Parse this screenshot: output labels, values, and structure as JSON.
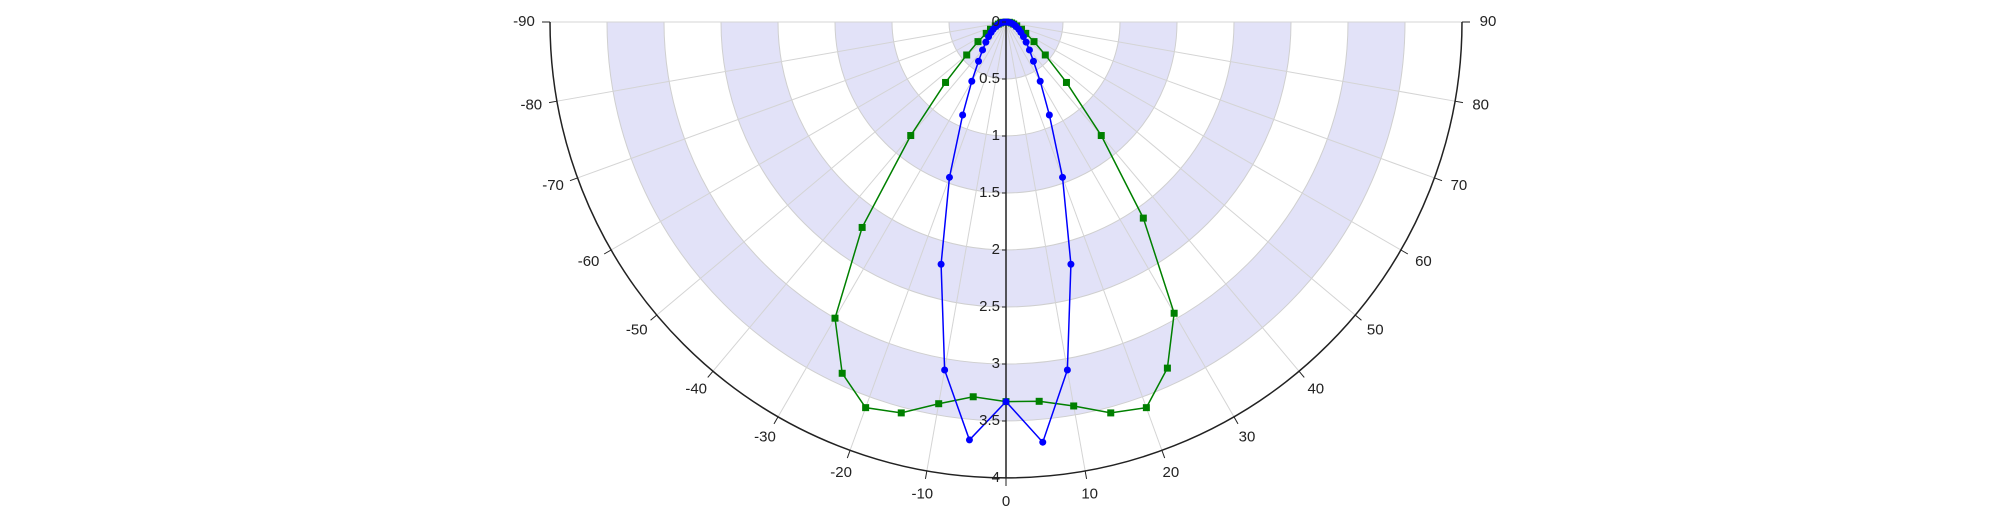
{
  "chart_data": {
    "type": "polar",
    "theta": [
      -90,
      -85,
      -80,
      -75,
      -70,
      -65,
      -60,
      -55,
      -50,
      -45,
      -40,
      -35,
      -30,
      -25,
      -20,
      -15,
      -10,
      -5,
      0,
      5,
      10,
      15,
      20,
      25,
      30,
      35,
      40,
      45,
      50,
      55,
      60,
      65,
      70,
      75,
      80,
      85,
      90
    ],
    "series": [
      {
        "color": "#008000",
        "marker": "square",
        "r": [
          0,
          0.03,
          0.05,
          0.07,
          0.1,
          0.15,
          0.2,
          0.3,
          0.45,
          0.75,
          1.3,
          2.2,
          3.0,
          3.4,
          3.6,
          3.55,
          3.4,
          3.3,
          3.33,
          3.34,
          3.42,
          3.55,
          3.6,
          3.35,
          2.95,
          2.1,
          1.3,
          0.75,
          0.45,
          0.3,
          0.2,
          0.15,
          0.1,
          0.07,
          0.05,
          0.03,
          0
        ]
      },
      {
        "color": "#0000ff",
        "marker": "circle",
        "r": [
          0,
          0.02,
          0.04,
          0.06,
          0.08,
          0.1,
          0.13,
          0.16,
          0.2,
          0.25,
          0.32,
          0.42,
          0.6,
          0.9,
          1.45,
          2.2,
          3.1,
          3.68,
          3.33,
          3.7,
          3.1,
          2.2,
          1.45,
          0.9,
          0.6,
          0.42,
          0.32,
          0.25,
          0.2,
          0.16,
          0.13,
          0.1,
          0.08,
          0.06,
          0.04,
          0.02,
          0
        ]
      }
    ],
    "rlim": [
      0,
      4
    ],
    "rticks": [
      0,
      0.5,
      1,
      1.5,
      2,
      2.5,
      3,
      3.5,
      4
    ],
    "thetalim": [
      -90,
      90
    ],
    "thetaticks": [
      -90,
      -80,
      -70,
      -60,
      -50,
      -40,
      -30,
      -20,
      -10,
      0,
      10,
      20,
      30,
      40,
      50,
      60,
      70,
      80,
      90
    ],
    "band_color": "#e2e2f8",
    "grid": true
  }
}
